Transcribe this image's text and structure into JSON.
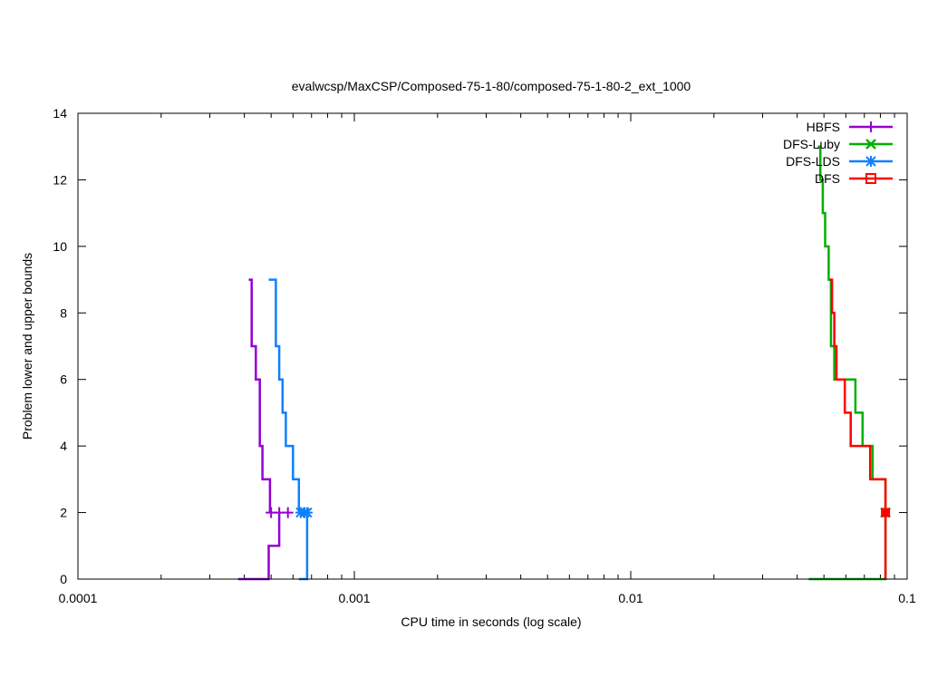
{
  "chart_data": {
    "type": "line",
    "title": "evalwcsp/MaxCSP/Composed-75-1-80/composed-75-1-80-2_ext_1000",
    "xlabel": "CPU time in seconds (log scale)",
    "ylabel": "Problem lower and upper bounds",
    "xscale": "log",
    "xlim": [
      0.0001,
      0.1
    ],
    "ylim": [
      0,
      14
    ],
    "x_ticks": [
      {
        "value": 0.0001,
        "label": "0.0001"
      },
      {
        "value": 0.001,
        "label": "0.001"
      },
      {
        "value": 0.01,
        "label": "0.01"
      },
      {
        "value": 0.1,
        "label": "0.1"
      }
    ],
    "y_ticks": [
      {
        "value": 0,
        "label": "0"
      },
      {
        "value": 2,
        "label": "2"
      },
      {
        "value": 4,
        "label": "4"
      },
      {
        "value": 6,
        "label": "6"
      },
      {
        "value": 8,
        "label": "8"
      },
      {
        "value": 10,
        "label": "10"
      },
      {
        "value": 12,
        "label": "12"
      },
      {
        "value": 14,
        "label": "14"
      }
    ],
    "grid": false,
    "legend_position": "top-right",
    "series": [
      {
        "name": "HBFS",
        "color": "#9400d3",
        "marker": "plus",
        "upper_bound": [
          [
            0.000415,
            9
          ],
          [
            0.000425,
            7
          ],
          [
            0.00044,
            6
          ],
          [
            0.000455,
            4
          ],
          [
            0.000465,
            3
          ],
          [
            0.000495,
            2
          ]
        ],
        "lower_bound": [
          [
            0.00038,
            0
          ],
          [
            0.00049,
            1
          ],
          [
            0.000535,
            2
          ]
        ],
        "points": [
          [
            0.0005,
            2
          ],
          [
            0.000535,
            2
          ],
          [
            0.000575,
            2
          ]
        ]
      },
      {
        "name": "DFS-Luby",
        "color": "#00b000",
        "marker": "cross",
        "upper_bound": [
          [
            0.0475,
            13
          ],
          [
            0.0485,
            12
          ],
          [
            0.0495,
            11
          ],
          [
            0.0505,
            10
          ],
          [
            0.052,
            9
          ],
          [
            0.053,
            7
          ],
          [
            0.0545,
            6
          ],
          [
            0.065,
            5
          ],
          [
            0.069,
            4
          ],
          [
            0.075,
            3
          ],
          [
            0.0835,
            2
          ]
        ],
        "lower_bound": [
          [
            0.044,
            0
          ],
          [
            0.0835,
            2
          ]
        ],
        "points": [
          [
            0.0835,
            2
          ]
        ]
      },
      {
        "name": "DFS-LDS",
        "color": "#0f80ff",
        "marker": "star",
        "upper_bound": [
          [
            0.00049,
            9
          ],
          [
            0.00052,
            7
          ],
          [
            0.000535,
            6
          ],
          [
            0.00055,
            5
          ],
          [
            0.000565,
            4
          ],
          [
            0.0006,
            3
          ],
          [
            0.00063,
            2
          ]
        ],
        "lower_bound": [
          [
            0.00063,
            0
          ],
          [
            0.000675,
            2
          ]
        ],
        "points": [
          [
            0.00064,
            2
          ],
          [
            0.00066,
            2
          ],
          [
            0.000675,
            2
          ]
        ]
      },
      {
        "name": "DFS",
        "color": "#ff0000",
        "marker": "square",
        "upper_bound": [
          [
            0.0525,
            9
          ],
          [
            0.0535,
            8
          ],
          [
            0.0545,
            7
          ],
          [
            0.0555,
            6
          ],
          [
            0.0595,
            5
          ],
          [
            0.0625,
            4
          ],
          [
            0.0735,
            3
          ],
          [
            0.0835,
            2
          ]
        ],
        "lower_bound": [
          [
            0.0835,
            0
          ],
          [
            0.0835,
            2
          ]
        ],
        "points": [
          [
            0.0835,
            2
          ]
        ]
      }
    ]
  }
}
